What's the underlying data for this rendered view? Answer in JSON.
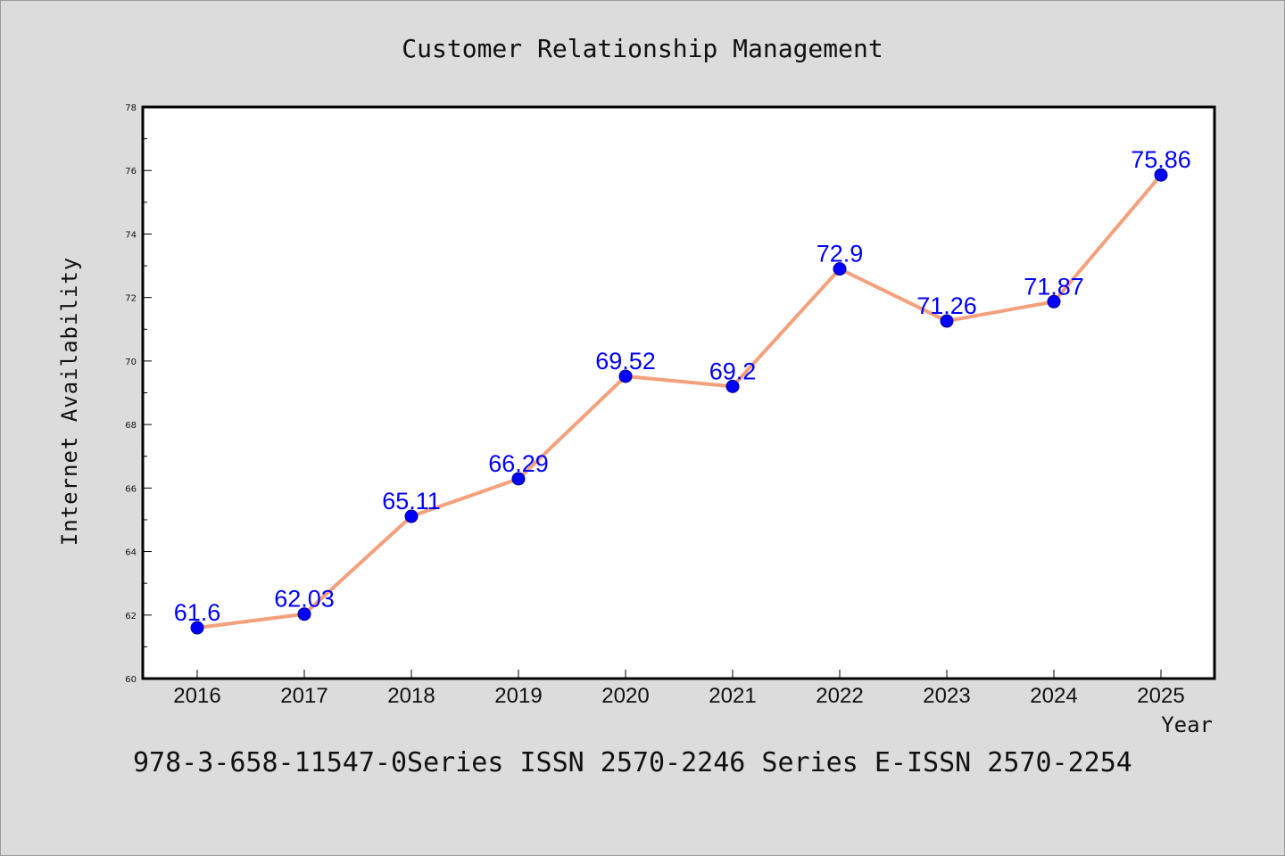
{
  "chart_data": {
    "type": "line",
    "title": "Customer Relationship Management",
    "xlabel": "Year",
    "ylabel": "Internet Availability",
    "categories": [
      "2016",
      "2017",
      "2018",
      "2019",
      "2020",
      "2021",
      "2022",
      "2023",
      "2024",
      "2025"
    ],
    "values": [
      61.6,
      62.03,
      65.11,
      66.29,
      69.52,
      69.2,
      72.9,
      71.26,
      71.87,
      75.86
    ],
    "data_labels": [
      "61.6",
      "62.03",
      "65.11",
      "66.29",
      "69.52",
      "69.2",
      "72.9",
      "71.26",
      "71.87",
      "75.86"
    ],
    "ylim": [
      60,
      78
    ],
    "yticks": [
      60,
      62,
      64,
      66,
      68,
      70,
      72,
      74,
      76,
      78
    ],
    "grid": false,
    "colors": {
      "line": "#f4a07c",
      "marker": "#0000ff",
      "labels": "#0000ff",
      "background": "#dcdcdc",
      "plot_background": "#ffffff"
    }
  },
  "footer_text": "978-3-658-11547-0Series ISSN 2570-2246 Series E-ISSN 2570-2254"
}
